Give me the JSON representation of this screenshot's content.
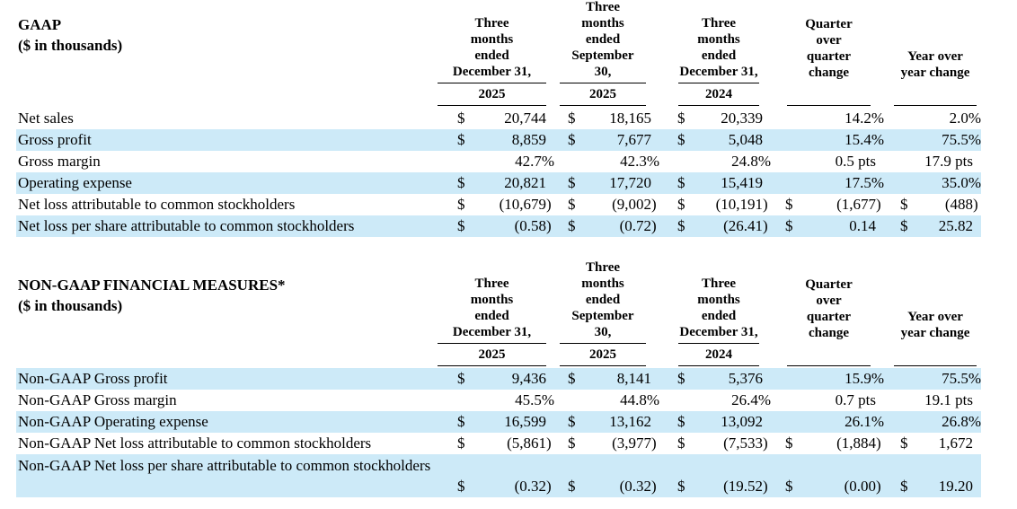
{
  "colors": {
    "row_highlight": "#cdeaf8",
    "text": "#000000",
    "rule_line": "#000000"
  },
  "columns": {
    "headers": [
      {
        "lines": [
          "Three",
          "months",
          "ended",
          "December 31,"
        ],
        "year": "2025"
      },
      {
        "lines": [
          "Three",
          "months",
          "ended",
          "September",
          "30,"
        ],
        "year": "2025"
      },
      {
        "lines": [
          "Three",
          "months",
          "ended",
          "December 31,"
        ],
        "year": "2024"
      },
      {
        "lines": [
          "Quarter",
          "over",
          "quarter",
          "change"
        ],
        "year": ""
      },
      {
        "lines": [
          "Year over",
          "year change"
        ],
        "year": ""
      }
    ]
  },
  "sections": [
    {
      "title": "GAAP",
      "subtitle": "($ in thousands)",
      "rows": [
        {
          "label": "Net sales",
          "highlight": false,
          "cells": [
            {
              "d": "$",
              "v": "20,744"
            },
            {
              "d": "$",
              "v": "18,165"
            },
            {
              "d": "$",
              "v": "20,339"
            },
            {
              "d": "",
              "v": "14.2%"
            },
            {
              "d": "",
              "v": "2.0%"
            }
          ]
        },
        {
          "label": "Gross profit",
          "highlight": true,
          "cells": [
            {
              "d": "$",
              "v": "8,859"
            },
            {
              "d": "$",
              "v": "7,677"
            },
            {
              "d": "$",
              "v": "5,048"
            },
            {
              "d": "",
              "v": "15.4%"
            },
            {
              "d": "",
              "v": "75.5%"
            }
          ]
        },
        {
          "label": "Gross margin",
          "highlight": false,
          "cells": [
            {
              "d": "",
              "v": "42.7%"
            },
            {
              "d": "",
              "v": "42.3%"
            },
            {
              "d": "",
              "v": "24.8%"
            },
            {
              "d": "",
              "v": "0.5 pts"
            },
            {
              "d": "",
              "v": "17.9 pts"
            }
          ]
        },
        {
          "label": "Operating expense",
          "highlight": true,
          "cells": [
            {
              "d": "$",
              "v": "20,821"
            },
            {
              "d": "$",
              "v": "17,720"
            },
            {
              "d": "$",
              "v": "15,419"
            },
            {
              "d": "",
              "v": "17.5%"
            },
            {
              "d": "",
              "v": "35.0%"
            }
          ]
        },
        {
          "label": "Net loss attributable to common stockholders",
          "highlight": false,
          "cells": [
            {
              "d": "$",
              "v": "(10,679)"
            },
            {
              "d": "$",
              "v": "(9,002)"
            },
            {
              "d": "$",
              "v": "(10,191)"
            },
            {
              "d": "$",
              "v": "(1,677)"
            },
            {
              "d": "$",
              "v": "(488)"
            }
          ]
        },
        {
          "label": "Net loss per share attributable to common stockholders",
          "highlight": true,
          "cells": [
            {
              "d": "$",
              "v": "(0.58)"
            },
            {
              "d": "$",
              "v": "(0.72)"
            },
            {
              "d": "$",
              "v": "(26.41)"
            },
            {
              "d": "$",
              "v": "0.14"
            },
            {
              "d": "$",
              "v": "25.82"
            }
          ]
        }
      ]
    },
    {
      "title": "NON-GAAP FINANCIAL MEASURES*",
      "subtitle": "($ in thousands)",
      "rows": [
        {
          "label": "Non-GAAP Gross profit",
          "highlight": true,
          "cells": [
            {
              "d": "$",
              "v": "9,436"
            },
            {
              "d": "$",
              "v": "8,141"
            },
            {
              "d": "$",
              "v": "5,376"
            },
            {
              "d": "",
              "v": "15.9%"
            },
            {
              "d": "",
              "v": "75.5%"
            }
          ]
        },
        {
          "label": "Non-GAAP Gross margin",
          "highlight": false,
          "cells": [
            {
              "d": "",
              "v": "45.5%"
            },
            {
              "d": "",
              "v": "44.8%"
            },
            {
              "d": "",
              "v": "26.4%"
            },
            {
              "d": "",
              "v": "0.7 pts"
            },
            {
              "d": "",
              "v": "19.1 pts"
            }
          ]
        },
        {
          "label": "Non-GAAP Operating expense",
          "highlight": true,
          "cells": [
            {
              "d": "$",
              "v": "16,599"
            },
            {
              "d": "$",
              "v": "13,162"
            },
            {
              "d": "$",
              "v": "13,092"
            },
            {
              "d": "",
              "v": "26.1%"
            },
            {
              "d": "",
              "v": "26.8%"
            }
          ]
        },
        {
          "label": "Non-GAAP Net loss attributable to common stockholders",
          "highlight": false,
          "cells": [
            {
              "d": "$",
              "v": "(5,861)"
            },
            {
              "d": "$",
              "v": "(3,977)"
            },
            {
              "d": "$",
              "v": "(7,533)"
            },
            {
              "d": "$",
              "v": "(1,884)"
            },
            {
              "d": "$",
              "v": "1,672"
            }
          ]
        },
        {
          "label": "Non-GAAP Net loss per share attributable to common stockholders",
          "highlight": true,
          "cells": [
            {
              "d": "$",
              "v": "(0.32)"
            },
            {
              "d": "$",
              "v": "(0.32)"
            },
            {
              "d": "$",
              "v": "(19.52)"
            },
            {
              "d": "$",
              "v": "(0.00)"
            },
            {
              "d": "$",
              "v": "19.20"
            }
          ]
        }
      ]
    }
  ]
}
